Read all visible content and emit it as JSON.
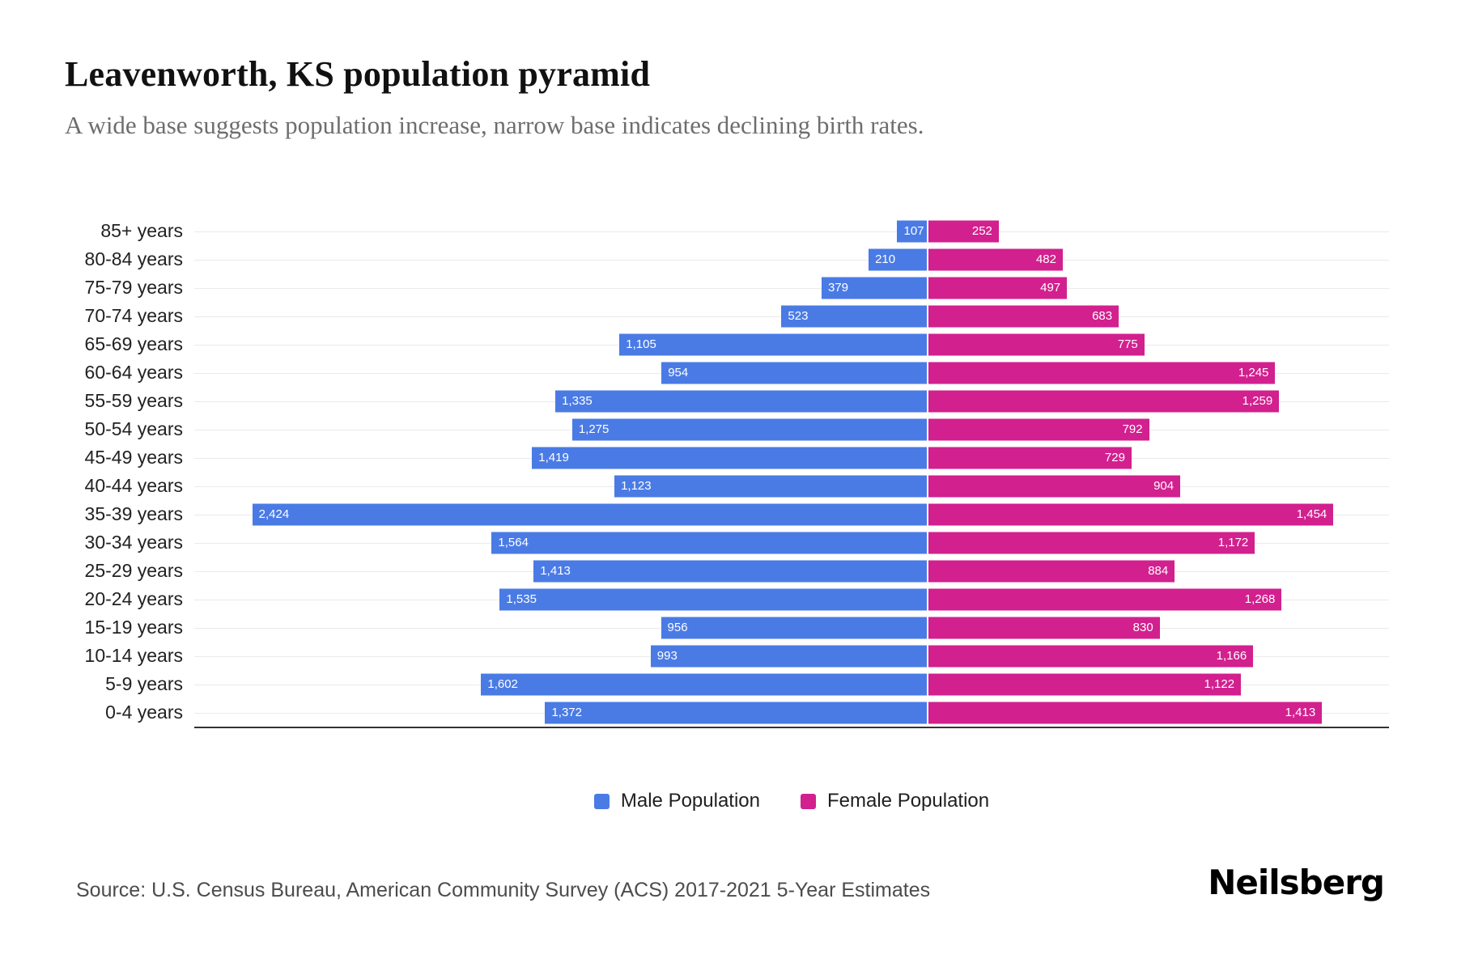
{
  "title": "Leavenworth, KS population pyramid",
  "subtitle": "A wide base suggests population increase, narrow base indicates declining birth rates.",
  "legend": {
    "male": "Male Population",
    "female": "Female Population"
  },
  "source": "Source: U.S. Census Bureau, American Community Survey (ACS) 2017-2021 5-Year Estimates",
  "brand": "Neilsberg",
  "colors": {
    "male": "#4a7be5",
    "female": "#d2208e",
    "gridline": "#eaeaea",
    "axis": "#333333",
    "bar_value_text": "#ffffff"
  },
  "chart_data": {
    "type": "bar",
    "subtype": "population-pyramid",
    "orientation": "horizontal",
    "title": "Leavenworth, KS population pyramid",
    "xlabel": "",
    "ylabel": "",
    "grid": "horizontal-lines",
    "legend_position": "bottom",
    "categories": [
      "85+ years",
      "80-84 years",
      "75-79 years",
      "70-74 years",
      "65-69 years",
      "60-64 years",
      "55-59 years",
      "50-54 years",
      "45-49 years",
      "40-44 years",
      "35-39 years",
      "30-34 years",
      "25-29 years",
      "20-24 years",
      "15-19 years",
      "10-14 years",
      "5-9 years",
      "0-4 years"
    ],
    "series": [
      {
        "name": "Male Population",
        "side": "left",
        "values": [
          107,
          210,
          379,
          523,
          1105,
          954,
          1335,
          1275,
          1419,
          1123,
          2424,
          1564,
          1413,
          1535,
          956,
          993,
          1602,
          1372
        ]
      },
      {
        "name": "Female Population",
        "side": "right",
        "values": [
          252,
          482,
          497,
          683,
          775,
          1245,
          1259,
          792,
          729,
          904,
          1454,
          1172,
          884,
          1268,
          830,
          1166,
          1122,
          1413
        ]
      }
    ],
    "max_male_value": 2424,
    "max_female_value": 1454
  }
}
